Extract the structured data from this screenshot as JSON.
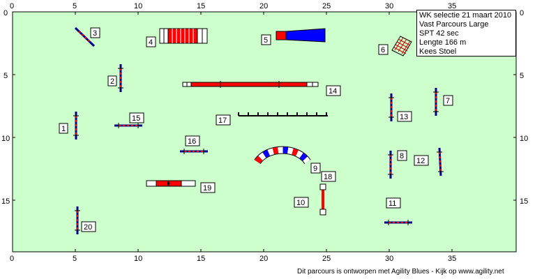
{
  "course": {
    "title": "WK selectie 21 maart 2010",
    "class": "Vast Parcours Large",
    "spt": "SPT 42 sec",
    "length": "Lengte 166 m",
    "judge": "Kees Stoel"
  },
  "footer": "Dit parcours is ontworpen met Agility Blues - Kijk op www.agility.net",
  "axes": {
    "x_ticks": [
      "0",
      "5",
      "10",
      "15",
      "20",
      "25",
      "30",
      "35"
    ],
    "y_ticks": [
      "0",
      "5",
      "10",
      "15"
    ]
  },
  "colors": {
    "field": "#ccffcc",
    "pole_blue": "#00008b",
    "pole_red": "#ff0000",
    "tunnel_blue": "#0000ff",
    "label_box": "#ffffff"
  },
  "obstacles": [
    {
      "number": "1",
      "type": "hurdle"
    },
    {
      "number": "2",
      "type": "hurdle"
    },
    {
      "number": "3",
      "type": "hurdle"
    },
    {
      "number": "4",
      "type": "tunnel"
    },
    {
      "number": "5",
      "type": "tunnel"
    },
    {
      "number": "6",
      "type": "tire"
    },
    {
      "number": "7",
      "type": "hurdle"
    },
    {
      "number": "8",
      "type": "hurdle"
    },
    {
      "number": "9",
      "type": "curved-tunnel"
    },
    {
      "number": "10",
      "type": "hurdle"
    },
    {
      "number": "11",
      "type": "hurdle"
    },
    {
      "number": "12",
      "type": "hurdle"
    },
    {
      "number": "13",
      "type": "hurdle"
    },
    {
      "number": "14",
      "type": "dogwalk"
    },
    {
      "number": "15",
      "type": "hurdle"
    },
    {
      "number": "16",
      "type": "hurdle"
    },
    {
      "number": "17",
      "type": "weave-poles"
    },
    {
      "number": "18",
      "type": "hurdle"
    },
    {
      "number": "19",
      "type": "tunnel"
    },
    {
      "number": "20",
      "type": "hurdle"
    }
  ]
}
